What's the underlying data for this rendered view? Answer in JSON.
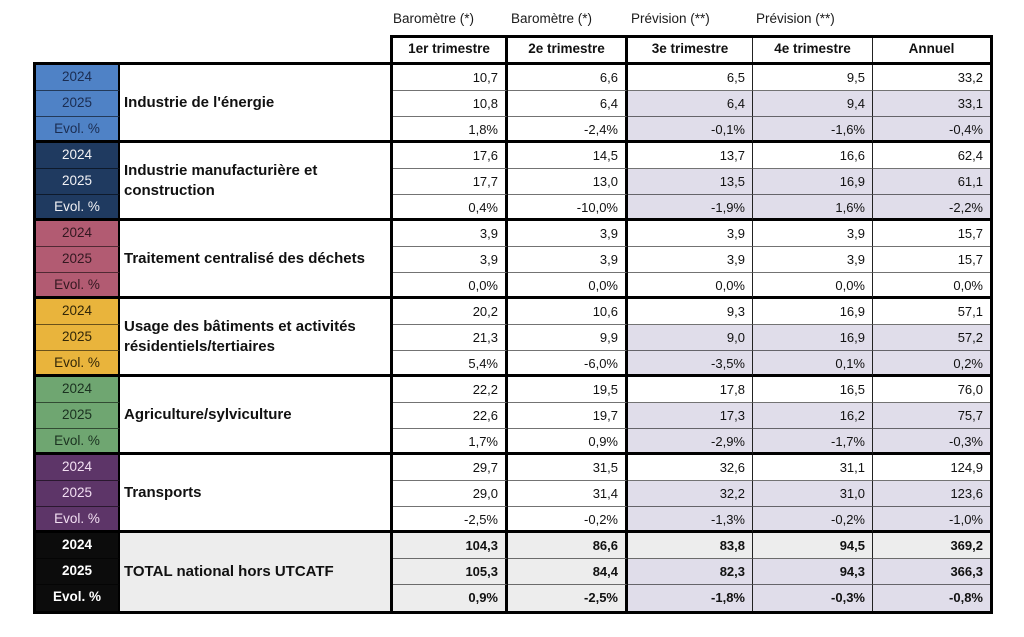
{
  "chart_data": {
    "type": "table",
    "column_group_labels": [
      "Baromètre (*)",
      "Baromètre (*)",
      "Prévision (**)",
      "Prévision (**)"
    ],
    "columns": [
      "1er trimestre",
      "2e trimestre",
      "3e trimestre",
      "4e trimestre",
      "Annuel"
    ],
    "row_labels": [
      "2024",
      "2025",
      "Evol. %"
    ],
    "colors": {
      "forecast_cell_bg": "#E0DDEA",
      "total_cell_bg": "#EDEDED",
      "grid_border": "#000000"
    },
    "sectors": [
      {
        "name": "Industrie de l'énergie",
        "label_bg": "#4F82C6",
        "label_text": "#1B2D52",
        "is_total": false,
        "rows": [
          {
            "label": "2024",
            "values": [
              "10,7",
              "6,6",
              "6,5",
              "9,5",
              "33,2"
            ],
            "forecast_shaded": false
          },
          {
            "label": "2025",
            "values": [
              "10,8",
              "6,4",
              "6,4",
              "9,4",
              "33,1"
            ],
            "forecast_shaded": true
          },
          {
            "label": "Evol. %",
            "values": [
              "1,8%",
              "-2,4%",
              "-0,1%",
              "-1,6%",
              "-0,4%"
            ],
            "forecast_shaded": true
          }
        ]
      },
      {
        "name": "Industrie manufacturière et construction",
        "label_bg": "#1F3A60",
        "label_text": "#F2F2F5",
        "is_total": false,
        "rows": [
          {
            "label": "2024",
            "values": [
              "17,6",
              "14,5",
              "13,7",
              "16,6",
              "62,4"
            ],
            "forecast_shaded": false
          },
          {
            "label": "2025",
            "values": [
              "17,7",
              "13,0",
              "13,5",
              "16,9",
              "61,1"
            ],
            "forecast_shaded": true
          },
          {
            "label": "Evol. %",
            "values": [
              "0,4%",
              "-10,0%",
              "-1,9%",
              "1,6%",
              "-2,2%"
            ],
            "forecast_shaded": true
          }
        ]
      },
      {
        "name": "Traitement centralisé des déchets",
        "label_bg": "#B25B72",
        "label_text": "#331820",
        "is_total": false,
        "rows": [
          {
            "label": "2024",
            "values": [
              "3,9",
              "3,9",
              "3,9",
              "3,9",
              "15,7"
            ],
            "forecast_shaded": false
          },
          {
            "label": "2025",
            "values": [
              "3,9",
              "3,9",
              "3,9",
              "3,9",
              "15,7"
            ],
            "forecast_shaded": false
          },
          {
            "label": "Evol. %",
            "values": [
              "0,0%",
              "0,0%",
              "0,0%",
              "0,0%",
              "0,0%"
            ],
            "forecast_shaded": false
          }
        ]
      },
      {
        "name": "Usage des bâtiments et activités résidentiels/tertiaires",
        "label_bg": "#E9B43C",
        "label_text": "#322708",
        "is_total": false,
        "rows": [
          {
            "label": "2024",
            "values": [
              "20,2",
              "10,6",
              "9,3",
              "16,9",
              "57,1"
            ],
            "forecast_shaded": false
          },
          {
            "label": "2025",
            "values": [
              "21,3",
              "9,9",
              "9,0",
              "16,9",
              "57,2"
            ],
            "forecast_shaded": true
          },
          {
            "label": "Evol. %",
            "values": [
              "5,4%",
              "-6,0%",
              "-3,5%",
              "0,1%",
              "0,2%"
            ],
            "forecast_shaded": true
          }
        ]
      },
      {
        "name": "Agriculture/sylviculture",
        "label_bg": "#6FA671",
        "label_text": "#1B3220",
        "is_total": false,
        "rows": [
          {
            "label": "2024",
            "values": [
              "22,2",
              "19,5",
              "17,8",
              "16,5",
              "76,0"
            ],
            "forecast_shaded": false
          },
          {
            "label": "2025",
            "values": [
              "22,6",
              "19,7",
              "17,3",
              "16,2",
              "75,7"
            ],
            "forecast_shaded": true
          },
          {
            "label": "Evol. %",
            "values": [
              "1,7%",
              "0,9%",
              "-2,9%",
              "-1,7%",
              "-0,3%"
            ],
            "forecast_shaded": true
          }
        ]
      },
      {
        "name": "Transports",
        "label_bg": "#5D3568",
        "label_text": "#F2DFF2",
        "is_total": false,
        "rows": [
          {
            "label": "2024",
            "values": [
              "29,7",
              "31,5",
              "32,6",
              "31,1",
              "124,9"
            ],
            "forecast_shaded": false
          },
          {
            "label": "2025",
            "values": [
              "29,0",
              "31,4",
              "32,2",
              "31,0",
              "123,6"
            ],
            "forecast_shaded": true
          },
          {
            "label": "Evol. %",
            "values": [
              "-2,5%",
              "-0,2%",
              "-1,3%",
              "-0,2%",
              "-1,0%"
            ],
            "forecast_shaded": true
          }
        ]
      },
      {
        "name": "TOTAL national hors UTCATF",
        "label_bg": "#0C0C0C",
        "label_text": "#FFFFFF",
        "is_total": true,
        "rows": [
          {
            "label": "2024",
            "values": [
              "104,3",
              "86,6",
              "83,8",
              "94,5",
              "369,2"
            ],
            "forecast_shaded": false
          },
          {
            "label": "2025",
            "values": [
              "105,3",
              "84,4",
              "82,3",
              "94,3",
              "366,3"
            ],
            "forecast_shaded": true
          },
          {
            "label": "Evol. %",
            "values": [
              "0,9%",
              "-2,5%",
              "-1,8%",
              "-0,3%",
              "-0,8%"
            ],
            "forecast_shaded": true
          }
        ]
      }
    ]
  }
}
